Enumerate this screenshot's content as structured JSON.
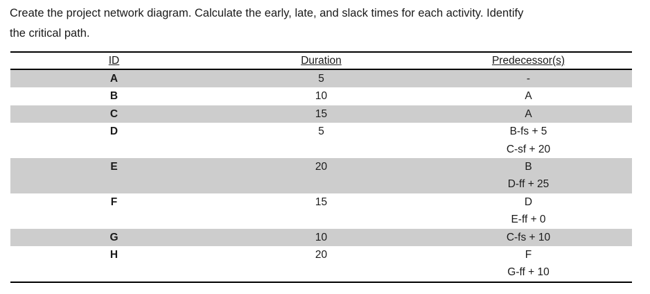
{
  "prompt": {
    "line1": "Create the project network diagram. Calculate the early, late, and slack times for each activity. Identify",
    "line2": "the critical path."
  },
  "table": {
    "headers": {
      "id": "ID",
      "duration": "Duration",
      "predecessors": "Predecessor(s)"
    },
    "rows": [
      {
        "id": "A",
        "duration": "5",
        "predecessors": [
          "-"
        ]
      },
      {
        "id": "B",
        "duration": "10",
        "predecessors": [
          "A"
        ]
      },
      {
        "id": "C",
        "duration": "15",
        "predecessors": [
          "A"
        ]
      },
      {
        "id": "D",
        "duration": "5",
        "predecessors": [
          "B-fs + 5",
          "C-sf + 20"
        ]
      },
      {
        "id": "E",
        "duration": "20",
        "predecessors": [
          "B",
          "D-ff + 25"
        ]
      },
      {
        "id": "F",
        "duration": "15",
        "predecessors": [
          "D",
          "E-ff + 0"
        ]
      },
      {
        "id": "G",
        "duration": "10",
        "predecessors": [
          "C-fs + 10"
        ]
      },
      {
        "id": "H",
        "duration": "20",
        "predecessors": [
          "F",
          "G-ff + 10"
        ]
      }
    ]
  },
  "colors": {
    "row_shading": "#cdcdcd",
    "table_border": "#000000",
    "text": "#1a1a1a",
    "background": "#ffffff"
  }
}
